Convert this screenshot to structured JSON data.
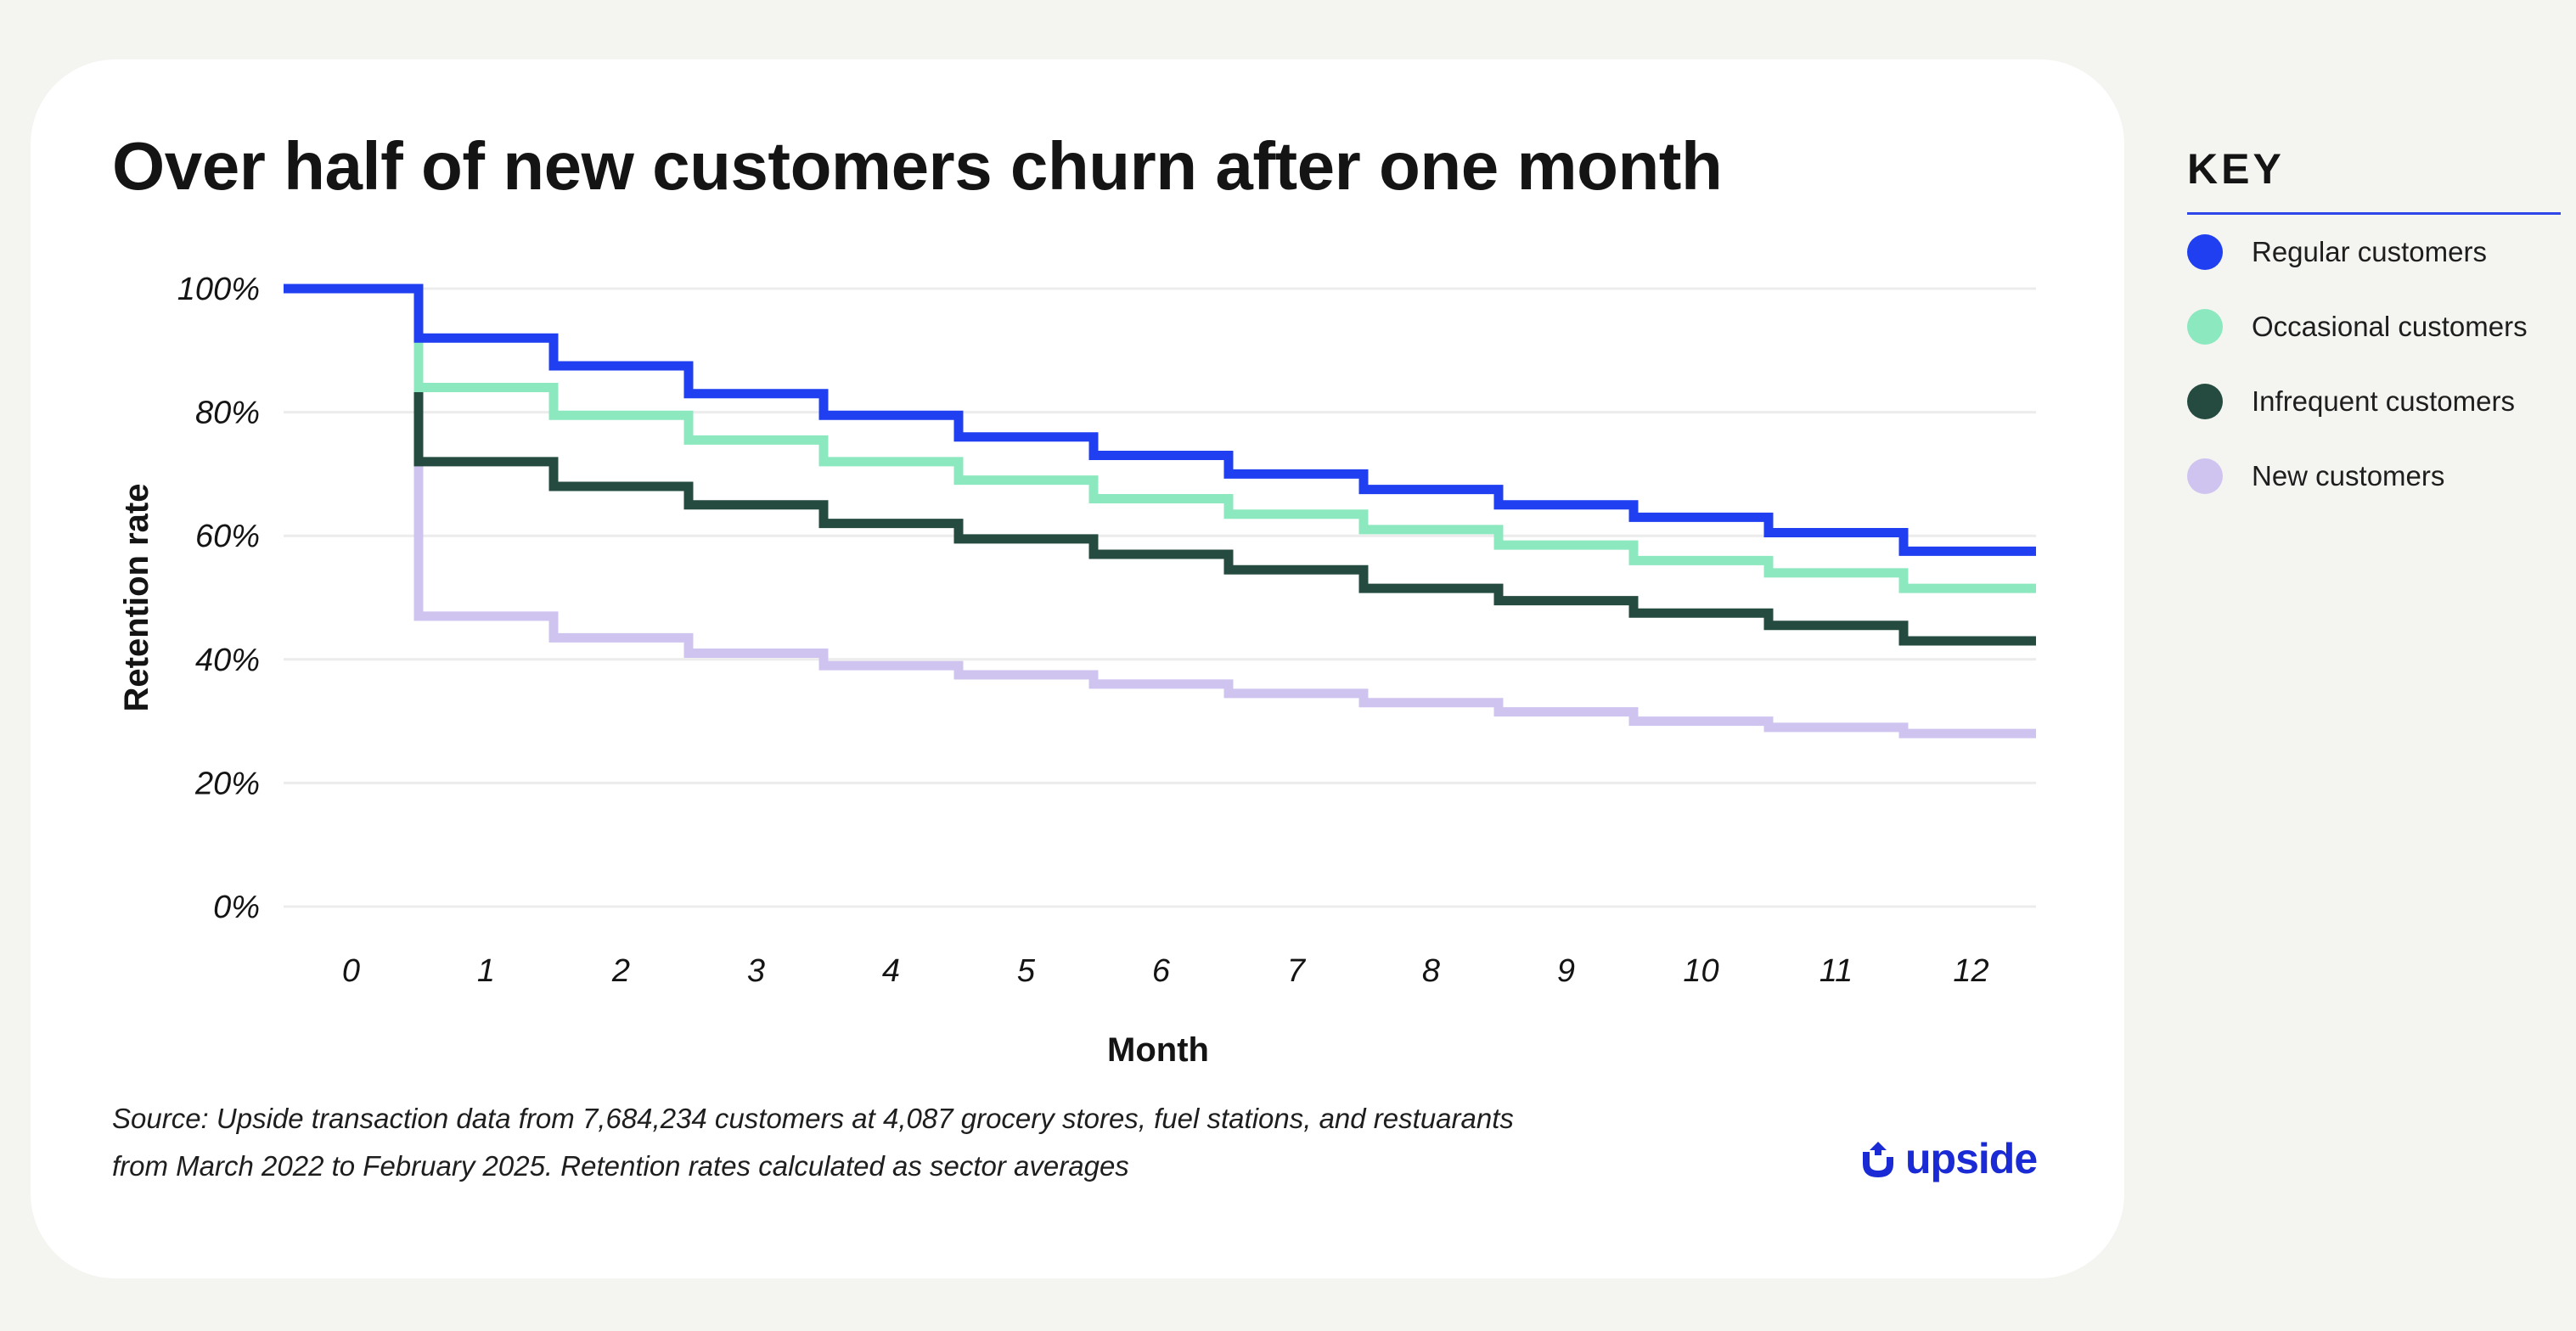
{
  "title": "Over half of new customers churn after one month",
  "source_lines": [
    "Source: Upside transaction data from 7,684,234 customers at 4,087 grocery stores, fuel stations, and restuarants",
    "from March 2022 to February 2025. Retention rates calculated as sector averages"
  ],
  "logo_text": "upside",
  "key": {
    "title": "KEY",
    "items": [
      {
        "label": "Regular customers",
        "color": "#1f3ff0"
      },
      {
        "label": "Occasional customers",
        "color": "#8ce8bf"
      },
      {
        "label": "Infrequent customers",
        "color": "#254a40"
      },
      {
        "label": "New customers",
        "color": "#cfc4f0"
      }
    ]
  },
  "chart_data": {
    "type": "line",
    "step": true,
    "xlabel": "Month",
    "ylabel": "Retention rate",
    "x": [
      0,
      1,
      2,
      3,
      4,
      5,
      6,
      7,
      8,
      9,
      10,
      11,
      12
    ],
    "ylim": [
      0,
      100
    ],
    "yticks": [
      0,
      20,
      40,
      60,
      80,
      100
    ],
    "ytick_labels": [
      "0%",
      "20%",
      "40%",
      "60%",
      "80%",
      "100%"
    ],
    "grid": true,
    "legend": "right",
    "series": [
      {
        "name": "New customers",
        "color": "#cfc4f0",
        "values": [
          100,
          47,
          43.5,
          41,
          39,
          37.5,
          36,
          34.5,
          33,
          31.5,
          30,
          29,
          28
        ]
      },
      {
        "name": "Infrequent customers",
        "color": "#254a40",
        "values": [
          100,
          72,
          68,
          65,
          62,
          59.5,
          57,
          54.5,
          51.5,
          49.5,
          47.5,
          45.5,
          43
        ]
      },
      {
        "name": "Occasional customers",
        "color": "#8ce8bf",
        "values": [
          100,
          84,
          79.5,
          75.5,
          72,
          69,
          66,
          63.5,
          61,
          58.5,
          56,
          54,
          51.5
        ]
      },
      {
        "name": "Regular customers",
        "color": "#1f3ff0",
        "values": [
          100,
          92,
          87.5,
          83,
          79.5,
          76,
          73,
          70,
          67.5,
          65,
          63,
          60.5,
          57.5
        ]
      }
    ]
  }
}
